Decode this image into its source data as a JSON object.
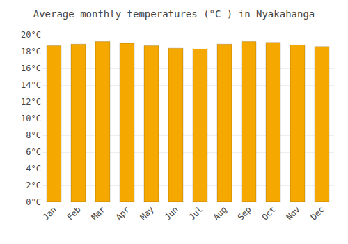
{
  "chart_data": {
    "type": "bar",
    "title": "Average monthly temperatures (°C ) in Nyakahanga",
    "categories": [
      "Jan",
      "Feb",
      "Mar",
      "Apr",
      "May",
      "Jun",
      "Jul",
      "Aug",
      "Sep",
      "Oct",
      "Nov",
      "Dec"
    ],
    "values": [
      18.7,
      18.9,
      19.2,
      19.0,
      18.7,
      18.4,
      18.3,
      18.9,
      19.2,
      19.1,
      18.8,
      18.6
    ],
    "color": "#F5A800",
    "ylim": [
      0,
      20
    ],
    "yticks": [
      {
        "value": 0,
        "label": "0°C"
      },
      {
        "value": 2,
        "label": "2°C"
      },
      {
        "value": 4,
        "label": "4°C"
      },
      {
        "value": 6,
        "label": "6°C"
      },
      {
        "value": 8,
        "label": "8°C"
      },
      {
        "value": 10,
        "label": "10°C"
      },
      {
        "value": 12,
        "label": "12°C"
      },
      {
        "value": 14,
        "label": "14°C"
      },
      {
        "value": 16,
        "label": "16°C"
      },
      {
        "value": 18,
        "label": "18°C"
      },
      {
        "value": 20,
        "label": "20°C"
      }
    ],
    "grid": true
  }
}
